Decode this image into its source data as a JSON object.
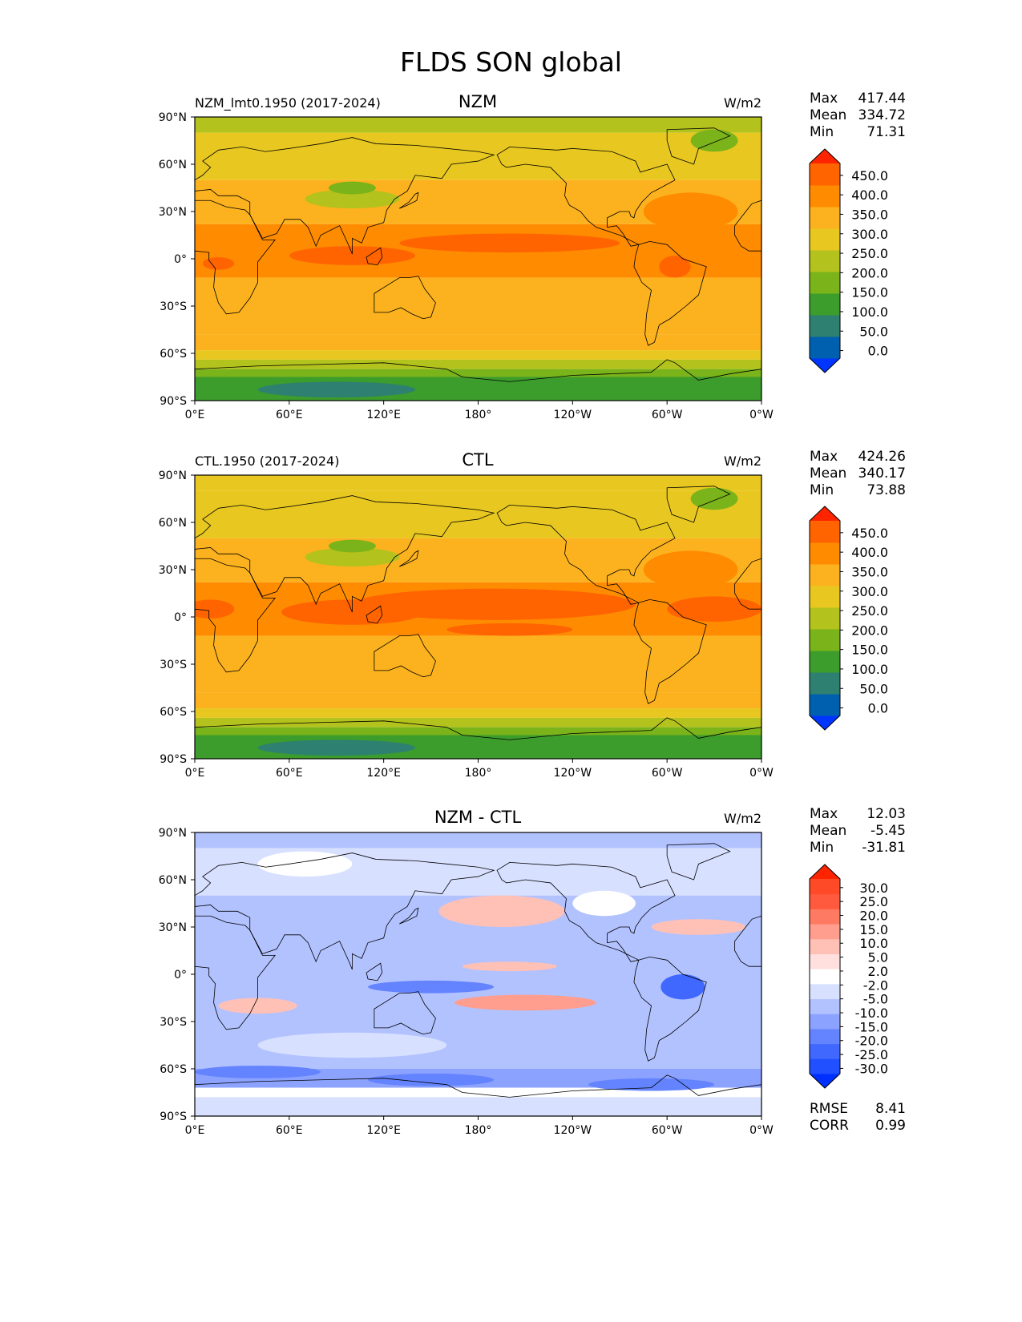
{
  "figure_title": "FLDS SON global",
  "chart_data": [
    {
      "type": "heatmap",
      "subtype": "global map",
      "left_title": "NZM_lmt0.1950 (2017-2024)",
      "center_title": "NZM",
      "units": "W/m2",
      "stats": {
        "max_label": "Max",
        "max": "417.44",
        "mean_label": "Mean",
        "mean": "334.72",
        "min_label": "Min",
        "min": "71.31"
      },
      "colorbar": {
        "levels": [
          "0.0",
          "50.0",
          "100.0",
          "150.0",
          "200.0",
          "250.0",
          "300.0",
          "350.0",
          "400.0",
          "450.0"
        ],
        "colors": [
          "#0034ff",
          "#0060b0",
          "#2e8070",
          "#3c9c2c",
          "#7ab31a",
          "#b3c21c",
          "#e8c820",
          "#fcb21e",
          "#ff8c00",
          "#ff6400",
          "#ff2400"
        ]
      },
      "xticks": [
        "0°E",
        "60°E",
        "120°E",
        "180°",
        "120°W",
        "60°W",
        "0°W"
      ],
      "yticks": [
        "90°N",
        "60°N",
        "30°N",
        "0°",
        "30°S",
        "60°S",
        "90°S"
      ]
    },
    {
      "type": "heatmap",
      "subtype": "global map",
      "left_title": "CTL.1950 (2017-2024)",
      "center_title": "CTL",
      "units": "W/m2",
      "stats": {
        "max_label": "Max",
        "max": "424.26",
        "mean_label": "Mean",
        "mean": "340.17",
        "min_label": "Min",
        "min": "73.88"
      },
      "colorbar": {
        "levels": [
          "0.0",
          "50.0",
          "100.0",
          "150.0",
          "200.0",
          "250.0",
          "300.0",
          "350.0",
          "400.0",
          "450.0"
        ],
        "colors": [
          "#0034ff",
          "#0060b0",
          "#2e8070",
          "#3c9c2c",
          "#7ab31a",
          "#b3c21c",
          "#e8c820",
          "#fcb21e",
          "#ff8c00",
          "#ff6400",
          "#ff2400"
        ]
      },
      "xticks": [
        "0°E",
        "60°E",
        "120°E",
        "180°",
        "120°W",
        "60°W",
        "0°W"
      ],
      "yticks": [
        "90°N",
        "60°N",
        "30°N",
        "0°",
        "30°S",
        "60°S",
        "90°S"
      ]
    },
    {
      "type": "heatmap",
      "subtype": "global difference map",
      "left_title": "",
      "center_title": "NZM - CTL",
      "units": "W/m2",
      "stats": {
        "max_label": "Max",
        "max": "12.03",
        "mean_label": "Mean",
        "mean": "-5.45",
        "min_label": "Min",
        "min": "-31.81"
      },
      "extra_stats": {
        "rmse_label": "RMSE",
        "rmse": "8.41",
        "corr_label": "CORR",
        "corr": "0.99"
      },
      "colorbar": {
        "levels": [
          "-30.0",
          "-25.0",
          "-20.0",
          "-15.0",
          "-10.0",
          "-5.0",
          "-2.0",
          "2.0",
          "5.0",
          "10.0",
          "15.0",
          "20.0",
          "25.0",
          "30.0"
        ],
        "colors": [
          "#0030ff",
          "#2050ff",
          "#4068ff",
          "#6484ff",
          "#8ca2ff",
          "#b2c2ff",
          "#d8e0ff",
          "#ffffff",
          "#ffe0de",
          "#ffc0b6",
          "#ff9e8e",
          "#ff7a62",
          "#ff5a3e",
          "#ff4a28",
          "#ff2400"
        ]
      },
      "xticks": [
        "0°E",
        "60°E",
        "120°E",
        "180°",
        "120°W",
        "60°W",
        "0°W"
      ],
      "yticks": [
        "90°N",
        "60°N",
        "30°N",
        "0°",
        "30°S",
        "60°S",
        "90°S"
      ]
    }
  ]
}
